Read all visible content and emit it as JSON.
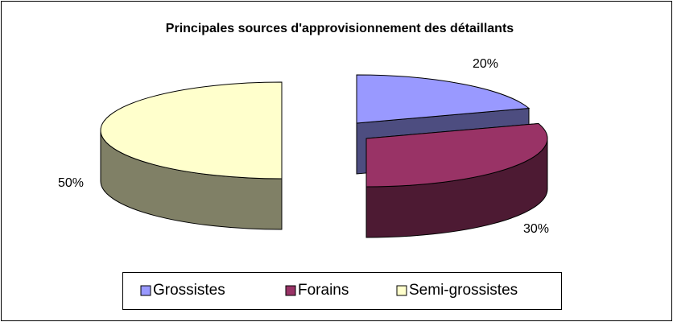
{
  "chart_data": {
    "type": "pie",
    "title": "Principales sources d'approvisionnement des détaillants",
    "categories": [
      "Grossistes",
      "Forains",
      "Semi-grossistes"
    ],
    "values": [
      20,
      30,
      50
    ],
    "value_labels": [
      "20%",
      "30%",
      "50%"
    ],
    "colors": [
      "#9999ff",
      "#993366",
      "#ffffcc"
    ],
    "legend": "bottom"
  }
}
